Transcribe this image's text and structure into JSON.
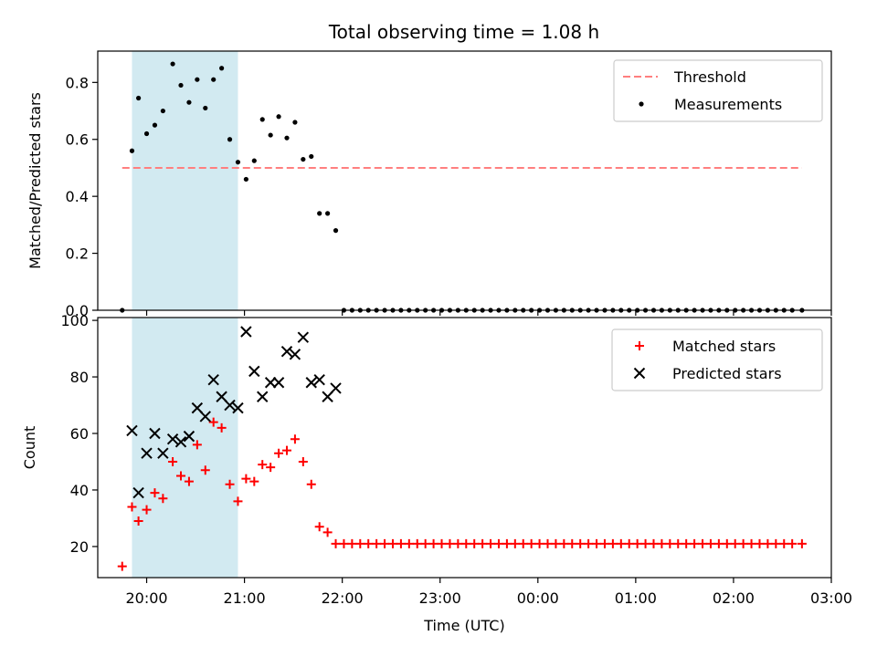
{
  "figure": {
    "title": "Total observing time = 1.08 h"
  },
  "chart_data": [
    {
      "type": "scatter",
      "ylabel": "Matched/Predicted stars",
      "xlabel": "",
      "ylim": [
        0,
        0.91
      ],
      "yticks": [
        0.0,
        0.2,
        0.4,
        0.6,
        0.8
      ],
      "ytick_labels": [
        "0.0",
        "0.2",
        "0.4",
        "0.6",
        "0.8"
      ],
      "xlim": [
        "19:30",
        "03:00"
      ],
      "xticks": [
        "20:00",
        "21:00",
        "22:00",
        "23:00",
        "00:00",
        "01:00",
        "02:00",
        "03:00"
      ],
      "grid": false,
      "legend_position": "top-right",
      "shaded_span": {
        "x_start": "19:51",
        "x_end": "20:56",
        "color": "#add8e6"
      },
      "threshold": {
        "name": "Threshold",
        "value": 0.5,
        "x_start": "19:45",
        "x_end": "02:42",
        "color": "#ff7f7f"
      },
      "series": [
        {
          "name": "Measurements",
          "color": "#000000",
          "marker": "dot",
          "x": [
            "19:45",
            "19:51",
            "19:55",
            "20:00",
            "20:05",
            "20:10",
            "20:16",
            "20:21",
            "20:26",
            "20:31",
            "20:36",
            "20:41",
            "20:46",
            "20:51",
            "20:56",
            "21:01",
            "21:06",
            "21:11",
            "21:16",
            "21:21",
            "21:26",
            "21:31",
            "21:36",
            "21:41",
            "21:46",
            "21:51",
            "21:56",
            "22:01",
            "22:06",
            "22:11",
            "22:16",
            "22:21",
            "22:26",
            "22:31",
            "22:36",
            "22:41",
            "22:46",
            "22:51",
            "22:56",
            "23:01",
            "23:06",
            "23:11",
            "23:16",
            "23:21",
            "23:26",
            "23:31",
            "23:36",
            "23:41",
            "23:46",
            "23:51",
            "23:56",
            "00:01",
            "00:06",
            "00:11",
            "00:16",
            "00:21",
            "00:26",
            "00:31",
            "00:36",
            "00:41",
            "00:46",
            "00:51",
            "00:56",
            "01:01",
            "01:06",
            "01:11",
            "01:16",
            "01:21",
            "01:26",
            "01:31",
            "01:36",
            "01:41",
            "01:46",
            "01:51",
            "01:56",
            "02:01",
            "02:06",
            "02:11",
            "02:16",
            "02:21",
            "02:26",
            "02:31",
            "02:36",
            "02:42"
          ],
          "y": [
            0.0,
            0.56,
            0.745,
            0.62,
            0.65,
            0.7,
            0.865,
            0.79,
            0.73,
            0.81,
            0.71,
            0.81,
            0.85,
            0.6,
            0.52,
            0.46,
            0.525,
            0.67,
            0.615,
            0.68,
            0.605,
            0.66,
            0.53,
            0.54,
            0.34,
            0.34,
            0.28,
            0.0,
            0.0,
            0.0,
            0.0,
            0.0,
            0.0,
            0.0,
            0.0,
            0.0,
            0.0,
            0.0,
            0.0,
            0.0,
            0.0,
            0.0,
            0.0,
            0.0,
            0.0,
            0.0,
            0.0,
            0.0,
            0.0,
            0.0,
            0.0,
            0.0,
            0.0,
            0.0,
            0.0,
            0.0,
            0.0,
            0.0,
            0.0,
            0.0,
            0.0,
            0.0,
            0.0,
            0.0,
            0.0,
            0.0,
            0.0,
            0.0,
            0.0,
            0.0,
            0.0,
            0.0,
            0.0,
            0.0,
            0.0,
            0.0,
            0.0,
            0.0,
            0.0,
            0.0,
            0.0,
            0.0,
            0.0,
            0.0
          ]
        }
      ]
    },
    {
      "type": "scatter",
      "ylabel": "Count",
      "xlabel": "Time (UTC)",
      "ylim": [
        9,
        101
      ],
      "yticks": [
        20,
        40,
        60,
        80,
        100
      ],
      "ytick_labels": [
        "20",
        "40",
        "60",
        "80",
        "100"
      ],
      "xlim": [
        "19:30",
        "03:00"
      ],
      "xticks": [
        "20:00",
        "21:00",
        "22:00",
        "23:00",
        "00:00",
        "01:00",
        "02:00",
        "03:00"
      ],
      "xtick_labels": [
        "20:00",
        "21:00",
        "22:00",
        "23:00",
        "00:00",
        "01:00",
        "02:00",
        "03:00"
      ],
      "grid": false,
      "legend_position": "top-right",
      "shaded_span": {
        "x_start": "19:51",
        "x_end": "20:56",
        "color": "#add8e6"
      },
      "series": [
        {
          "name": "Matched stars",
          "color": "#ff0000",
          "marker": "plus",
          "x": [
            "19:45",
            "19:51",
            "19:55",
            "20:00",
            "20:05",
            "20:10",
            "20:16",
            "20:21",
            "20:26",
            "20:31",
            "20:36",
            "20:41",
            "20:46",
            "20:51",
            "20:56",
            "21:01",
            "21:06",
            "21:11",
            "21:16",
            "21:21",
            "21:26",
            "21:31",
            "21:36",
            "21:41",
            "21:46",
            "21:51",
            "21:56",
            "22:01",
            "22:06",
            "22:11",
            "22:16",
            "22:21",
            "22:26",
            "22:31",
            "22:36",
            "22:41",
            "22:46",
            "22:51",
            "22:56",
            "23:01",
            "23:06",
            "23:11",
            "23:16",
            "23:21",
            "23:26",
            "23:31",
            "23:36",
            "23:41",
            "23:46",
            "23:51",
            "23:56",
            "00:01",
            "00:06",
            "00:11",
            "00:16",
            "00:21",
            "00:26",
            "00:31",
            "00:36",
            "00:41",
            "00:46",
            "00:51",
            "00:56",
            "01:01",
            "01:06",
            "01:11",
            "01:16",
            "01:21",
            "01:26",
            "01:31",
            "01:36",
            "01:41",
            "01:46",
            "01:51",
            "01:56",
            "02:01",
            "02:06",
            "02:11",
            "02:16",
            "02:21",
            "02:26",
            "02:31",
            "02:36",
            "02:42"
          ],
          "y": [
            13,
            34,
            29,
            33,
            39,
            37,
            50,
            45,
            43,
            56,
            47,
            64,
            62,
            42,
            36,
            44,
            43,
            49,
            48,
            53,
            54,
            58,
            50,
            42,
            27,
            25,
            21,
            21,
            21,
            21,
            21,
            21,
            21,
            21,
            21,
            21,
            21,
            21,
            21,
            21,
            21,
            21,
            21,
            21,
            21,
            21,
            21,
            21,
            21,
            21,
            21,
            21,
            21,
            21,
            21,
            21,
            21,
            21,
            21,
            21,
            21,
            21,
            21,
            21,
            21,
            21,
            21,
            21,
            21,
            21,
            21,
            21,
            21,
            21,
            21,
            21,
            21,
            21,
            21,
            21,
            21,
            21,
            21,
            21
          ]
        },
        {
          "name": "Predicted stars",
          "color": "#000000",
          "marker": "x",
          "x": [
            "19:51",
            "19:55",
            "20:00",
            "20:05",
            "20:10",
            "20:16",
            "20:21",
            "20:26",
            "20:31",
            "20:36",
            "20:41",
            "20:46",
            "20:51",
            "20:56",
            "21:01",
            "21:06",
            "21:11",
            "21:16",
            "21:21",
            "21:26",
            "21:31",
            "21:36",
            "21:41",
            "21:46",
            "21:51",
            "21:56"
          ],
          "y": [
            61,
            39,
            53,
            60,
            53,
            58,
            57,
            59,
            69,
            66,
            79,
            73,
            70,
            69,
            96,
            82,
            73,
            78,
            78,
            89,
            88,
            94,
            78,
            79,
            73,
            76
          ]
        }
      ]
    }
  ]
}
